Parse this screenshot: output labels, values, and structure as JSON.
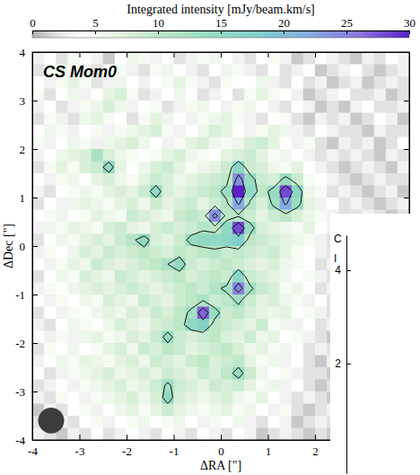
{
  "chart_data": [
    {
      "type": "heatmap",
      "title": "CS Mom0",
      "x_label": "ΔRA [\"]",
      "y_label": "ΔDec [\"]",
      "xlim": [
        -4,
        4
      ],
      "ylim": [
        -4,
        4
      ],
      "xticks": [
        -4,
        -3,
        -2,
        -1,
        0,
        1,
        2
      ],
      "yticks": [
        -4,
        -3,
        -2,
        -1,
        0,
        1,
        2,
        3,
        4
      ],
      "x": [
        -3.875,
        -3.625,
        -3.375,
        -3.125,
        -2.875,
        -2.625,
        -2.375,
        -2.125,
        -1.875,
        -1.625,
        -1.375,
        -1.125,
        -0.875,
        -0.625,
        -0.375,
        -0.125,
        0.125,
        0.375,
        0.625,
        0.875,
        1.125,
        1.375,
        1.625,
        1.875,
        2.125,
        2.375,
        2.625,
        2.875,
        3.125,
        3.375,
        3.625,
        3.875
      ],
      "y": [
        3.875,
        3.625,
        3.375,
        3.125,
        2.875,
        2.625,
        2.375,
        2.125,
        1.875,
        1.625,
        1.375,
        1.125,
        0.875,
        0.625,
        0.375,
        0.125,
        -0.125,
        -0.375,
        -0.625,
        -0.875,
        -1.125,
        -1.375,
        -1.625,
        -1.875,
        -2.125,
        -2.375,
        -2.625,
        -2.875,
        -3.125,
        -3.375,
        -3.625,
        -3.875
      ],
      "values": [
        [
          3,
          4,
          2,
          5,
          4,
          3,
          1,
          4,
          6,
          5,
          3,
          4,
          2,
          3,
          5,
          6,
          4,
          3,
          2,
          4,
          5,
          3,
          1,
          2,
          4,
          3,
          2,
          1,
          3,
          2,
          4,
          3
        ],
        [
          2,
          5,
          6,
          4,
          3,
          2,
          4,
          5,
          3,
          2,
          5,
          6,
          4,
          3,
          2,
          4,
          6,
          5,
          3,
          2,
          4,
          2,
          3,
          4,
          1,
          2,
          3,
          4,
          2,
          1,
          2,
          3
        ],
        [
          4,
          3,
          5,
          7,
          5,
          2,
          3,
          6,
          4,
          3,
          4,
          5,
          7,
          5,
          3,
          2,
          5,
          4,
          4,
          6,
          3,
          2,
          4,
          2,
          3,
          1,
          2,
          3,
          1,
          2,
          3,
          2
        ],
        [
          5,
          2,
          4,
          6,
          3,
          4,
          7,
          8,
          5,
          2,
          3,
          4,
          6,
          4,
          2,
          3,
          4,
          2,
          5,
          7,
          5,
          4,
          3,
          1,
          2,
          3,
          4,
          2,
          2,
          3,
          1,
          2
        ],
        [
          3,
          4,
          2,
          3,
          5,
          6,
          8,
          6,
          3,
          4,
          5,
          2,
          3,
          5,
          6,
          4,
          3,
          5,
          6,
          4,
          3,
          2,
          4,
          3,
          1,
          2,
          1,
          3,
          4,
          2,
          2,
          3
        ],
        [
          2,
          5,
          3,
          2,
          6,
          7,
          5,
          4,
          2,
          5,
          7,
          6,
          4,
          3,
          5,
          6,
          7,
          5,
          3,
          2,
          4,
          5,
          2,
          1,
          3,
          2,
          3,
          1,
          2,
          4,
          3,
          1
        ],
        [
          4,
          6,
          5,
          3,
          4,
          5,
          3,
          5,
          6,
          7,
          8,
          5,
          3,
          4,
          6,
          8,
          7,
          4,
          3,
          5,
          7,
          6,
          3,
          2,
          4,
          3,
          2,
          2,
          1,
          3,
          2,
          2
        ],
        [
          5,
          3,
          4,
          6,
          5,
          3,
          6,
          7,
          8,
          6,
          4,
          3,
          5,
          7,
          8,
          6,
          5,
          6,
          8,
          9,
          7,
          4,
          3,
          5,
          2,
          1,
          3,
          2,
          3,
          1,
          2,
          4
        ],
        [
          3,
          4,
          6,
          7,
          8,
          12,
          8,
          6,
          5,
          4,
          5,
          7,
          8,
          6,
          5,
          4,
          7,
          8,
          9,
          7,
          5,
          6,
          4,
          3,
          2,
          3,
          2,
          3,
          2,
          1,
          3,
          2
        ],
        [
          2,
          5,
          7,
          5,
          8,
          9,
          15,
          7,
          4,
          6,
          8,
          9,
          7,
          5,
          6,
          7,
          9,
          16,
          9,
          8,
          6,
          5,
          7,
          4,
          3,
          2,
          1,
          2,
          3,
          2,
          1,
          3
        ],
        [
          4,
          3,
          5,
          6,
          4,
          7,
          8,
          6,
          5,
          7,
          9,
          8,
          6,
          7,
          8,
          9,
          10,
          24,
          14,
          9,
          8,
          14,
          9,
          5,
          4,
          3,
          2,
          1,
          2,
          3,
          2,
          2
        ],
        [
          3,
          2,
          4,
          5,
          6,
          5,
          7,
          8,
          7,
          9,
          15,
          8,
          7,
          8,
          9,
          10,
          14,
          30,
          15,
          10,
          14,
          28,
          16,
          6,
          5,
          2,
          3,
          2,
          1,
          2,
          3,
          1
        ],
        [
          2,
          4,
          3,
          6,
          7,
          6,
          5,
          7,
          8,
          6,
          9,
          7,
          8,
          9,
          7,
          9,
          11,
          22,
          11,
          8,
          13,
          22,
          14,
          7,
          3,
          4,
          2,
          3,
          2,
          1,
          2,
          3
        ],
        [
          4,
          5,
          6,
          4,
          5,
          7,
          6,
          5,
          9,
          8,
          7,
          6,
          9,
          10,
          9,
          24,
          10,
          11,
          9,
          7,
          9,
          10,
          8,
          6,
          5,
          3,
          2,
          2,
          3,
          2,
          1,
          2
        ],
        [
          3,
          6,
          5,
          7,
          6,
          5,
          8,
          9,
          7,
          6,
          8,
          9,
          8,
          9,
          11,
          10,
          15,
          28,
          14,
          8,
          7,
          6,
          5,
          7,
          4,
          3,
          2,
          1,
          2,
          3,
          2,
          2
        ],
        [
          2,
          4,
          6,
          5,
          7,
          8,
          7,
          9,
          11,
          15,
          8,
          7,
          9,
          14,
          15,
          15,
          16,
          18,
          10,
          9,
          8,
          7,
          6,
          5,
          3,
          2,
          3,
          2,
          1,
          2,
          3,
          1
        ],
        [
          3,
          5,
          4,
          6,
          8,
          7,
          9,
          8,
          9,
          10,
          9,
          8,
          10,
          9,
          10,
          11,
          9,
          10,
          9,
          8,
          9,
          7,
          5,
          4,
          3,
          2,
          2,
          3,
          2,
          1,
          2,
          2
        ],
        [
          4,
          3,
          5,
          7,
          6,
          9,
          8,
          7,
          8,
          9,
          10,
          12,
          15,
          9,
          8,
          9,
          10,
          9,
          8,
          7,
          8,
          6,
          5,
          4,
          2,
          3,
          1,
          2,
          3,
          2,
          1,
          3
        ],
        [
          2,
          4,
          6,
          5,
          8,
          7,
          6,
          9,
          8,
          7,
          8,
          9,
          10,
          8,
          9,
          10,
          9,
          16,
          9,
          8,
          7,
          6,
          4,
          5,
          3,
          2,
          3,
          2,
          2,
          1,
          2,
          2
        ],
        [
          3,
          5,
          4,
          6,
          7,
          8,
          7,
          8,
          9,
          8,
          7,
          8,
          9,
          10,
          9,
          11,
          13,
          25,
          13,
          9,
          8,
          5,
          6,
          4,
          2,
          3,
          2,
          1,
          2,
          3,
          2,
          1
        ],
        [
          4,
          3,
          5,
          4,
          6,
          5,
          8,
          7,
          6,
          9,
          8,
          7,
          9,
          10,
          12,
          9,
          10,
          13,
          9,
          7,
          8,
          6,
          5,
          3,
          4,
          2,
          1,
          2,
          3,
          2,
          1,
          2
        ],
        [
          2,
          4,
          3,
          5,
          4,
          6,
          7,
          6,
          8,
          7,
          9,
          8,
          10,
          13,
          27,
          14,
          9,
          10,
          8,
          7,
          6,
          7,
          4,
          5,
          3,
          2,
          2,
          3,
          1,
          2,
          2,
          3
        ],
        [
          3,
          2,
          4,
          6,
          5,
          4,
          6,
          8,
          7,
          6,
          8,
          9,
          10,
          15,
          17,
          10,
          9,
          8,
          7,
          9,
          5,
          6,
          3,
          4,
          2,
          3,
          1,
          2,
          2,
          3,
          1,
          2
        ],
        [
          4,
          3,
          5,
          3,
          6,
          7,
          5,
          6,
          8,
          7,
          9,
          14,
          9,
          8,
          9,
          10,
          8,
          7,
          9,
          6,
          7,
          4,
          5,
          3,
          2,
          1,
          3,
          2,
          1,
          2,
          3,
          2
        ],
        [
          2,
          5,
          4,
          6,
          4,
          5,
          7,
          8,
          6,
          9,
          8,
          10,
          9,
          7,
          8,
          9,
          10,
          8,
          6,
          7,
          5,
          6,
          4,
          2,
          3,
          2,
          2,
          1,
          3,
          2,
          2,
          1
        ],
        [
          3,
          4,
          6,
          5,
          7,
          6,
          5,
          7,
          8,
          6,
          9,
          8,
          7,
          9,
          10,
          8,
          9,
          10,
          7,
          5,
          6,
          3,
          4,
          2,
          1,
          3,
          2,
          2,
          1,
          3,
          1,
          2
        ],
        [
          4,
          2,
          3,
          5,
          6,
          7,
          8,
          6,
          7,
          8,
          7,
          9,
          8,
          7,
          9,
          8,
          10,
          14,
          9,
          6,
          4,
          5,
          3,
          2,
          2,
          1,
          3,
          2,
          2,
          1,
          2,
          3
        ],
        [
          2,
          3,
          4,
          3,
          5,
          6,
          7,
          8,
          6,
          7,
          9,
          13,
          9,
          8,
          7,
          9,
          8,
          9,
          7,
          5,
          6,
          3,
          4,
          2,
          1,
          2,
          2,
          3,
          1,
          2,
          2,
          1
        ],
        [
          3,
          2,
          5,
          4,
          3,
          5,
          6,
          7,
          8,
          6,
          8,
          15,
          8,
          7,
          6,
          7,
          8,
          6,
          5,
          7,
          4,
          3,
          2,
          3,
          2,
          1,
          2,
          2,
          3,
          1,
          2,
          2
        ],
        [
          1,
          3,
          2,
          4,
          5,
          3,
          4,
          6,
          7,
          5,
          7,
          9,
          7,
          6,
          5,
          6,
          7,
          5,
          6,
          4,
          3,
          5,
          2,
          1,
          2,
          3,
          1,
          2,
          2,
          1,
          3,
          2
        ],
        [
          2,
          1,
          3,
          2,
          4,
          5,
          3,
          4,
          5,
          6,
          4,
          5,
          6,
          4,
          3,
          5,
          4,
          6,
          3,
          2,
          4,
          3,
          1,
          2,
          3,
          2,
          1,
          1,
          2,
          3,
          2,
          1
        ],
        [
          3,
          2,
          1,
          3,
          2,
          4,
          2,
          3,
          4,
          3,
          2,
          4,
          3,
          2,
          4,
          3,
          2,
          4,
          3,
          1,
          2,
          3,
          2,
          1,
          2,
          1,
          2,
          3,
          1,
          2,
          1,
          2
        ]
      ],
      "contours": [
        12,
        21
      ],
      "colorbar": {
        "label": "Integrated intensity [mJy/beam.km/s]",
        "range": [
          0,
          30
        ],
        "ticks": [
          0,
          5,
          10,
          15,
          20,
          25,
          30
        ]
      },
      "beam": {
        "x": -3.6,
        "y": -3.6,
        "diameter": 0.55
      }
    },
    {
      "type": "line",
      "ylim": [
        -0.35,
        4.75
      ],
      "yticks": [
        2,
        4
      ],
      "annotations": [
        "C",
        "I"
      ]
    }
  ]
}
